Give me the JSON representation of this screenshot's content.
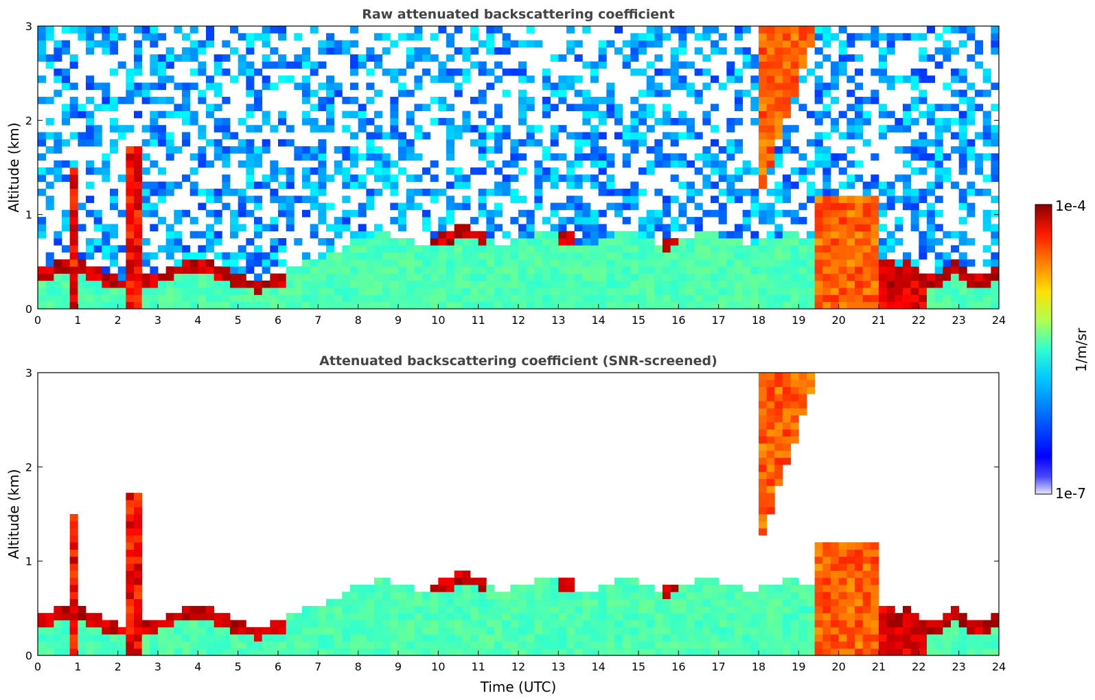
{
  "chart_data": [
    {
      "type": "heatmap",
      "title": "Raw attenuated backscattering coefficient",
      "xlabel": "",
      "ylabel": "Altitude (km)",
      "xlim": [
        0,
        24
      ],
      "ylim": [
        0,
        3
      ],
      "xticks": [
        "0",
        "1",
        "2",
        "3",
        "4",
        "5",
        "6",
        "7",
        "8",
        "9",
        "10",
        "11",
        "12",
        "13",
        "14",
        "15",
        "16",
        "17",
        "18",
        "19",
        "20",
        "21",
        "22",
        "23",
        "24"
      ],
      "yticks": [
        "0",
        "1",
        "2",
        "3"
      ],
      "screened": false,
      "features": [
        {
          "name": "boundary layer (aerosol-filled)",
          "t_start": 6.3,
          "t_end": 19.5,
          "top_km": 0.75
        },
        {
          "name": "cloud band near PBL top",
          "t_start": 9.7,
          "t_end": 11.3,
          "alt_km": 0.7
        },
        {
          "name": "high cloud / precipitation streak",
          "t_start": 18.0,
          "t_end": 19.5,
          "alt_km": [
            1.3,
            3.0
          ]
        },
        {
          "name": "thick lower cloud",
          "t_start": 19.5,
          "t_end": 21.0,
          "top_km": 1.2
        },
        {
          "name": "night-time low cloud layer",
          "t_start": 2.5,
          "t_end": 6.3,
          "alt_km": 0.3
        }
      ]
    },
    {
      "type": "heatmap",
      "title": "Attenuated backscattering coefficient (SNR-screened)",
      "xlabel": "Time (UTC)",
      "ylabel": "Altitude (km)",
      "xlim": [
        0,
        24
      ],
      "ylim": [
        0,
        3
      ],
      "xticks": [
        "0",
        "1",
        "2",
        "3",
        "4",
        "5",
        "6",
        "7",
        "8",
        "9",
        "10",
        "11",
        "12",
        "13",
        "14",
        "15",
        "16",
        "17",
        "18",
        "19",
        "20",
        "21",
        "22",
        "23",
        "24"
      ],
      "yticks": [
        "0",
        "1",
        "2",
        "3"
      ],
      "screened": true
    }
  ],
  "colorbar": {
    "max_label": "1e-4",
    "min_label": "1e-7",
    "unit_label": "1/m/sr",
    "scale": "log",
    "colormap": "jet"
  }
}
